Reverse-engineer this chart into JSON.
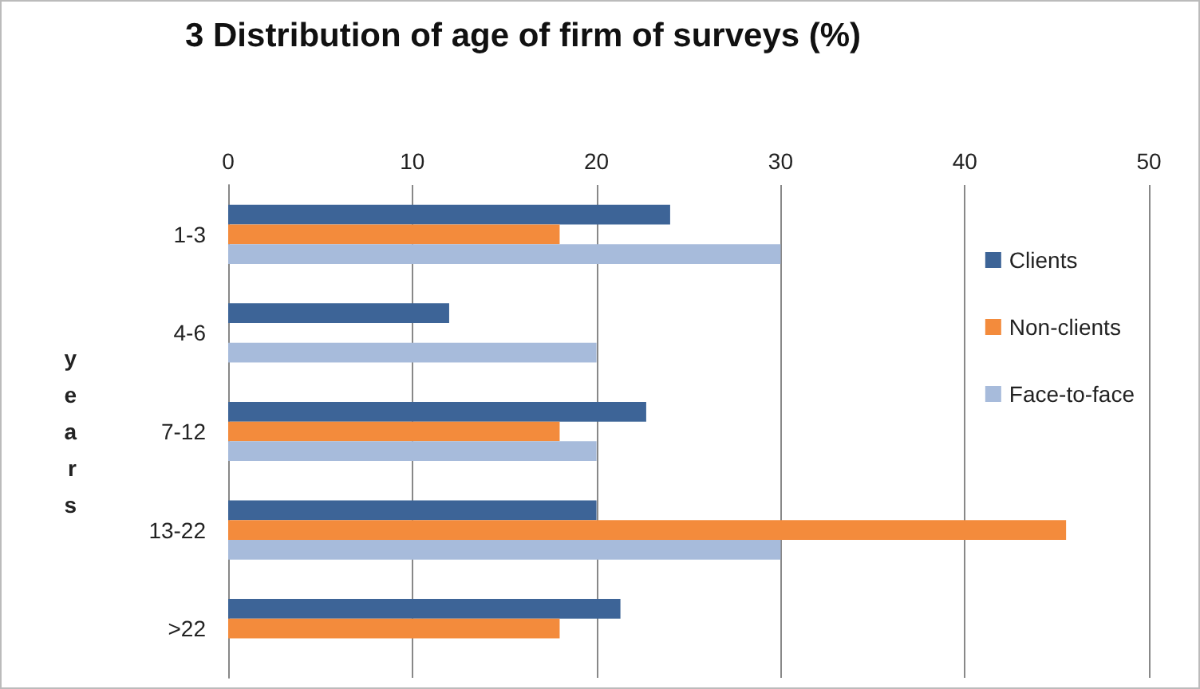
{
  "chart_data": {
    "type": "bar",
    "orientation": "horizontal",
    "title": "3 Distribution of age of firm of surveys (%)",
    "ylabel": "years",
    "categories": [
      "1-3",
      "4-6",
      "7-12",
      "13-22",
      ">22"
    ],
    "series": [
      {
        "name": "Clients",
        "color": "#3d6497",
        "values": [
          24,
          12,
          22.7,
          20,
          21.3
        ]
      },
      {
        "name": "Non-clients",
        "color": "#f38b3c",
        "values": [
          18,
          null,
          18,
          45.5,
          18
        ]
      },
      {
        "name": "Face-to-face",
        "color": "#a7bbdb",
        "values": [
          30,
          20,
          20,
          30,
          null
        ]
      }
    ],
    "xlim": [
      0,
      50
    ],
    "xticks": [
      0,
      10,
      20,
      30,
      40,
      50
    ],
    "grid": "x",
    "legend": "right"
  }
}
